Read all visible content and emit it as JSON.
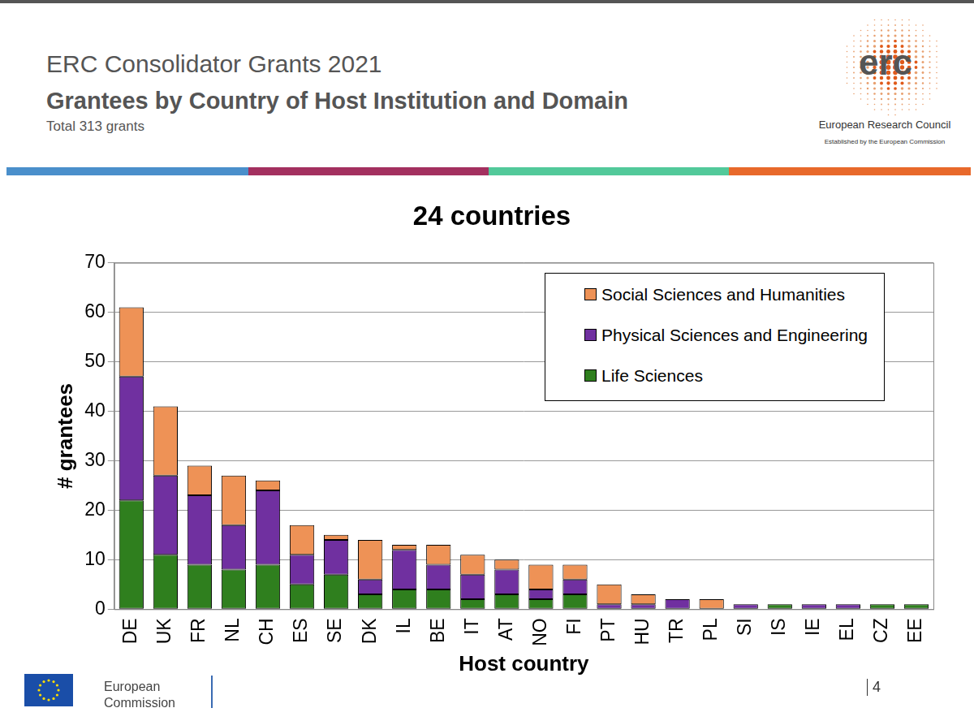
{
  "header": {
    "title": "ERC Consolidator Grants 2021",
    "subtitle": "Grantees by Country of Host Institution and Domain",
    "note": "Total 313 grants",
    "logo": {
      "mark": "erc",
      "name": "European Research Council",
      "tagline": "Established by the European Commission"
    }
  },
  "chart_data": {
    "type": "bar",
    "title": "24 countries",
    "x_label": "Host country",
    "y_label": "# grantees",
    "categories": [
      "DE",
      "UK",
      "FR",
      "NL",
      "CH",
      "ES",
      "SE",
      "DK",
      "IL",
      "BE",
      "IT",
      "AT",
      "NO",
      "FI",
      "PT",
      "HU",
      "TR",
      "PL",
      "SI",
      "IS",
      "IE",
      "EL",
      "CZ",
      "EE"
    ],
    "series": [
      {
        "name": "Life Sciences",
        "color": "#2f7f1e",
        "values": [
          22,
          11,
          9,
          8,
          9,
          5,
          7,
          3,
          4,
          4,
          2,
          3,
          2,
          3,
          0,
          0,
          0,
          0,
          0,
          1,
          0,
          0,
          1,
          1
        ]
      },
      {
        "name": "Physical Sciences and Engineering",
        "color": "#7030a0",
        "values": [
          25,
          16,
          14,
          9,
          15,
          6,
          7,
          3,
          8,
          5,
          5,
          5,
          2,
          3,
          1,
          1,
          2,
          0,
          1,
          0,
          1,
          1,
          0,
          0
        ]
      },
      {
        "name": "Social Sciences and Humanities",
        "color": "#ee9256",
        "values": [
          14,
          14,
          6,
          10,
          2,
          6,
          1,
          8,
          1,
          4,
          4,
          2,
          5,
          3,
          4,
          2,
          0,
          2,
          0,
          0,
          0,
          0,
          0,
          0
        ]
      }
    ],
    "stacked": true,
    "ylim": [
      0,
      70
    ],
    "yticks": [
      0,
      10,
      20,
      30,
      40,
      50,
      60,
      70
    ],
    "grid": true,
    "legend": "upper right"
  },
  "footer": {
    "organisation": "European Commission",
    "page": "4"
  }
}
